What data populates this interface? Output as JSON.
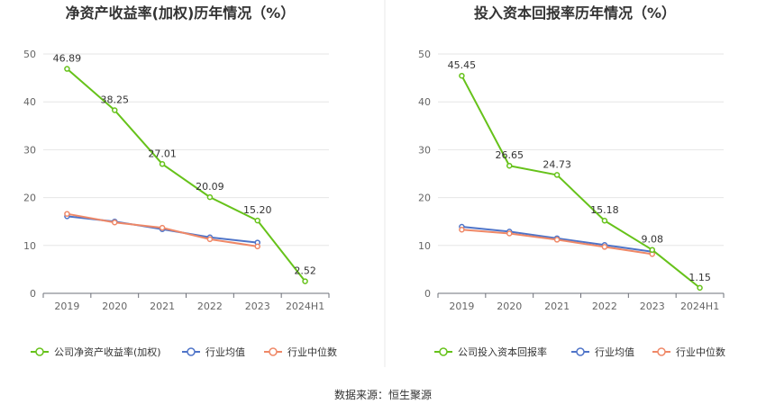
{
  "source": "数据来源：恒生聚源",
  "chart_data": [
    {
      "type": "line",
      "title": "净资产收益率(加权)历年情况（%）",
      "categories": [
        "2019",
        "2020",
        "2021",
        "2022",
        "2023",
        "2024H1"
      ],
      "ylim": [
        0,
        50
      ],
      "yticks": [
        0,
        10,
        20,
        30,
        40,
        50
      ],
      "grid": true,
      "legend_position": "bottom",
      "series": [
        {
          "name": "公司净资产收益率(加权)",
          "color": "#66c21a",
          "values": [
            46.89,
            38.25,
            27.01,
            20.09,
            15.2,
            2.52
          ],
          "labels": [
            "46.89",
            "38.25",
            "27.01",
            "20.09",
            "15.20",
            "2.52"
          ]
        },
        {
          "name": "行业均值",
          "color": "#4f74c8",
          "values": [
            16.1,
            15.0,
            13.4,
            11.7,
            10.6,
            null
          ]
        },
        {
          "name": "行业中位数",
          "color": "#ef8867",
          "values": [
            16.6,
            14.8,
            13.7,
            11.3,
            9.8,
            null
          ]
        }
      ]
    },
    {
      "type": "line",
      "title": "投入资本回报率历年情况（%）",
      "categories": [
        "2019",
        "2020",
        "2021",
        "2022",
        "2023",
        "2024H1"
      ],
      "ylim": [
        0,
        50
      ],
      "yticks": [
        0,
        10,
        20,
        30,
        40,
        50
      ],
      "grid": true,
      "legend_position": "bottom",
      "series": [
        {
          "name": "公司投入资本回报率",
          "color": "#66c21a",
          "values": [
            45.45,
            26.65,
            24.73,
            15.18,
            9.08,
            1.15
          ],
          "labels": [
            "45.45",
            "26.65",
            "24.73",
            "15.18",
            "9.08",
            "1.15"
          ]
        },
        {
          "name": "行业均值",
          "color": "#4f74c8",
          "values": [
            13.9,
            12.9,
            11.5,
            10.1,
            8.7,
            null
          ]
        },
        {
          "name": "行业中位数",
          "color": "#ef8867",
          "values": [
            13.3,
            12.5,
            11.2,
            9.7,
            8.2,
            null
          ]
        }
      ]
    }
  ]
}
